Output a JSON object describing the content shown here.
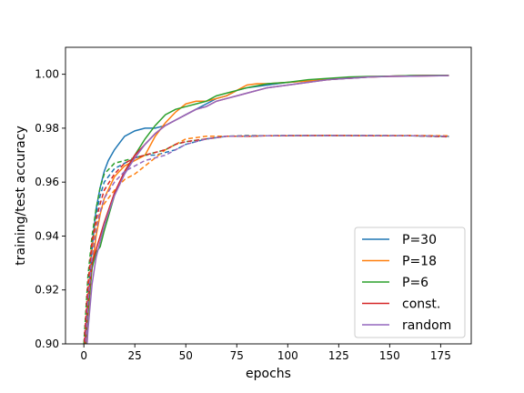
{
  "chart_data": {
    "type": "line",
    "title": "",
    "xlabel": "epochs",
    "ylabel": "training/test accuracy",
    "xlim": [
      -9,
      190
    ],
    "ylim": [
      0.9,
      1.01
    ],
    "xticks": [
      0,
      25,
      50,
      75,
      100,
      125,
      150,
      175
    ],
    "yticks": [
      0.9,
      0.92,
      0.94,
      0.96,
      0.98,
      1.0
    ],
    "xtick_labels": [
      "0",
      "25",
      "50",
      "75",
      "100",
      "125",
      "150",
      "175"
    ],
    "ytick_labels": [
      "0.90",
      "0.92",
      "0.94",
      "0.96",
      "0.98",
      "1.00"
    ],
    "grid": false,
    "legend_position": "bottom-right",
    "series": [
      {
        "name": "P=30",
        "color": "#1f77b4",
        "train": {
          "x": [
            0,
            2,
            4,
            6,
            8,
            10,
            12,
            15,
            18,
            20,
            25,
            30,
            35,
            40,
            45,
            50,
            55,
            60,
            65,
            70,
            75,
            80,
            90,
            100,
            110,
            120,
            130,
            140,
            150,
            160,
            170,
            179
          ],
          "y": [
            0.89,
            0.915,
            0.935,
            0.95,
            0.958,
            0.964,
            0.968,
            0.972,
            0.975,
            0.977,
            0.979,
            0.98,
            0.98,
            0.981,
            0.983,
            0.985,
            0.987,
            0.989,
            0.991,
            0.992,
            0.994,
            0.995,
            0.996,
            0.997,
            0.9975,
            0.998,
            0.9985,
            0.999,
            0.9993,
            0.9995,
            0.9996,
            0.9996
          ]
        },
        "test": {
          "x": [
            0,
            2,
            4,
            6,
            8,
            10,
            15,
            20,
            25,
            30,
            35,
            40,
            45,
            50,
            55,
            60,
            70,
            80,
            90,
            100,
            120,
            140,
            160,
            179
          ],
          "y": [
            0.895,
            0.92,
            0.938,
            0.948,
            0.955,
            0.96,
            0.965,
            0.967,
            0.969,
            0.97,
            0.97,
            0.971,
            0.972,
            0.974,
            0.975,
            0.976,
            0.977,
            0.977,
            0.9772,
            0.9772,
            0.9773,
            0.9772,
            0.9772,
            0.977
          ]
        }
      },
      {
        "name": "P=18",
        "color": "#ff7f0e",
        "train": {
          "x": [
            0,
            2,
            4,
            6,
            8,
            10,
            15,
            20,
            25,
            30,
            35,
            40,
            45,
            50,
            55,
            60,
            65,
            70,
            75,
            80,
            85,
            90,
            100,
            110,
            120,
            130,
            140,
            150,
            160,
            170,
            179
          ],
          "y": [
            0.888,
            0.91,
            0.928,
            0.94,
            0.948,
            0.954,
            0.962,
            0.966,
            0.968,
            0.97,
            0.977,
            0.982,
            0.986,
            0.989,
            0.99,
            0.99,
            0.991,
            0.992,
            0.994,
            0.996,
            0.9965,
            0.9965,
            0.997,
            0.9975,
            0.998,
            0.9988,
            0.999,
            0.9993,
            0.9995,
            0.9996,
            0.9996
          ]
        },
        "test": {
          "x": [
            0,
            2,
            4,
            6,
            8,
            10,
            15,
            20,
            25,
            30,
            35,
            40,
            45,
            50,
            60,
            70,
            80,
            90,
            100,
            120,
            140,
            160,
            179
          ],
          "y": [
            0.893,
            0.918,
            0.935,
            0.944,
            0.949,
            0.952,
            0.957,
            0.961,
            0.963,
            0.966,
            0.969,
            0.972,
            0.974,
            0.976,
            0.977,
            0.977,
            0.977,
            0.9772,
            0.9772,
            0.9773,
            0.9772,
            0.9773,
            0.9772
          ]
        }
      },
      {
        "name": "P=6",
        "color": "#2ca02c",
        "train": {
          "x": [
            0,
            2,
            4,
            6,
            8,
            10,
            15,
            20,
            25,
            30,
            35,
            40,
            45,
            50,
            55,
            60,
            65,
            70,
            75,
            80,
            90,
            100,
            110,
            120,
            130,
            140,
            150,
            160,
            170,
            179
          ],
          "y": [
            0.892,
            0.912,
            0.928,
            0.934,
            0.936,
            0.942,
            0.955,
            0.964,
            0.97,
            0.976,
            0.981,
            0.985,
            0.987,
            0.988,
            0.989,
            0.99,
            0.992,
            0.993,
            0.994,
            0.995,
            0.9965,
            0.997,
            0.998,
            0.9985,
            0.999,
            0.9992,
            0.9993,
            0.9995,
            0.9996,
            0.9996
          ]
        },
        "test": {
          "x": [
            0,
            2,
            4,
            6,
            8,
            10,
            15,
            20,
            25,
            30,
            35,
            40,
            45,
            50,
            60,
            70,
            80,
            90,
            100,
            120,
            140,
            160,
            179
          ],
          "y": [
            0.9,
            0.925,
            0.94,
            0.95,
            0.958,
            0.963,
            0.967,
            0.968,
            0.969,
            0.97,
            0.971,
            0.972,
            0.974,
            0.975,
            0.976,
            0.977,
            0.9773,
            0.9772,
            0.9773,
            0.9772,
            0.9773,
            0.9772,
            0.9768
          ]
        }
      },
      {
        "name": "const.",
        "color": "#d62728",
        "train": {
          "x": [
            0,
            2,
            4,
            6,
            8,
            10,
            15,
            20,
            25,
            30,
            35,
            40,
            45,
            50,
            55,
            60,
            65,
            70,
            75,
            80,
            90,
            100,
            110,
            120,
            130,
            140,
            150,
            160,
            170,
            179
          ],
          "y": [
            0.895,
            0.915,
            0.93,
            0.935,
            0.94,
            0.945,
            0.956,
            0.964,
            0.97,
            0.974,
            0.978,
            0.981,
            0.983,
            0.985,
            0.987,
            0.988,
            0.99,
            0.991,
            0.992,
            0.993,
            0.995,
            0.996,
            0.997,
            0.998,
            0.9985,
            0.999,
            0.9992,
            0.9993,
            0.9994,
            0.9995
          ]
        },
        "test": {
          "x": [
            0,
            2,
            4,
            6,
            8,
            10,
            15,
            20,
            25,
            30,
            35,
            40,
            45,
            50,
            60,
            70,
            80,
            90,
            100,
            120,
            140,
            160,
            179
          ],
          "y": [
            0.898,
            0.922,
            0.938,
            0.946,
            0.952,
            0.957,
            0.963,
            0.967,
            0.969,
            0.97,
            0.971,
            0.972,
            0.974,
            0.975,
            0.976,
            0.977,
            0.977,
            0.9772,
            0.9772,
            0.9773,
            0.9772,
            0.9772,
            0.9768
          ]
        }
      },
      {
        "name": "random",
        "color": "#9467bd",
        "train": {
          "x": [
            0,
            2,
            4,
            6,
            8,
            10,
            15,
            20,
            25,
            30,
            35,
            40,
            45,
            50,
            55,
            60,
            65,
            70,
            75,
            80,
            90,
            100,
            110,
            120,
            130,
            140,
            150,
            160,
            170,
            179
          ],
          "y": [
            0.88,
            0.905,
            0.922,
            0.932,
            0.938,
            0.944,
            0.955,
            0.963,
            0.969,
            0.974,
            0.978,
            0.981,
            0.983,
            0.985,
            0.987,
            0.988,
            0.99,
            0.991,
            0.992,
            0.993,
            0.995,
            0.996,
            0.997,
            0.998,
            0.9985,
            0.999,
            0.9992,
            0.9993,
            0.9994,
            0.9995
          ]
        },
        "test": {
          "x": [
            0,
            2,
            4,
            6,
            8,
            10,
            15,
            20,
            25,
            30,
            35,
            40,
            45,
            50,
            60,
            70,
            80,
            90,
            100,
            120,
            140,
            160,
            179
          ],
          "y": [
            0.89,
            0.915,
            0.932,
            0.942,
            0.949,
            0.954,
            0.96,
            0.964,
            0.966,
            0.968,
            0.969,
            0.97,
            0.972,
            0.974,
            0.976,
            0.977,
            0.9772,
            0.9772,
            0.9773,
            0.9772,
            0.9773,
            0.9772,
            0.977
          ]
        }
      }
    ]
  }
}
